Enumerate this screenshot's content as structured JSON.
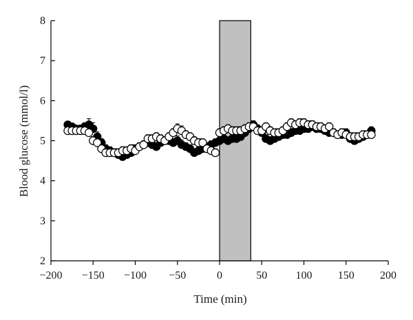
{
  "chart_data": {
    "type": "scatter",
    "title": "",
    "xlabel": "Time (min)",
    "ylabel": "Blood glucose (mmol/l)",
    "xlim": [
      -200,
      200
    ],
    "ylim": [
      2,
      8
    ],
    "xticks": [
      "−200",
      "−150",
      "−100",
      "−50",
      "0",
      "50",
      "100",
      "150",
      "200"
    ],
    "yticks": [
      "2",
      "3",
      "4",
      "5",
      "6",
      "7",
      "8"
    ],
    "xtick_values": [
      -200,
      -150,
      -100,
      -50,
      0,
      50,
      100,
      150,
      200
    ],
    "ytick_values": [
      2,
      3,
      4,
      5,
      6,
      7,
      8
    ],
    "grid": false,
    "legend": "none",
    "shaded_interval": {
      "x_start": 0,
      "x_end": 37,
      "color": "#c0c0c0"
    },
    "series": [
      {
        "marker": "filled-circle",
        "color": "#000000",
        "x": [
          -180,
          -175,
          -170,
          -165,
          -160,
          -155,
          -150,
          -145,
          -140,
          -135,
          -130,
          -125,
          -120,
          -115,
          -110,
          -105,
          -100,
          -95,
          -90,
          -85,
          -80,
          -75,
          -70,
          -65,
          -60,
          -55,
          -50,
          -45,
          -40,
          -35,
          -30,
          -25,
          -20,
          -15,
          -10,
          -5,
          0,
          5,
          10,
          15,
          20,
          25,
          30,
          35,
          40,
          45,
          50,
          55,
          60,
          65,
          70,
          75,
          80,
          85,
          90,
          95,
          100,
          105,
          110,
          115,
          120,
          125,
          130,
          135,
          140,
          145,
          150,
          155,
          160,
          165,
          170,
          175,
          180
        ],
        "y": [
          5.4,
          5.35,
          5.3,
          5.3,
          5.35,
          5.4,
          5.3,
          5.1,
          4.95,
          4.8,
          4.75,
          4.7,
          4.65,
          4.6,
          4.65,
          4.7,
          4.8,
          4.85,
          4.9,
          4.95,
          4.9,
          4.85,
          4.95,
          5.0,
          5.0,
          4.95,
          5.0,
          4.9,
          4.85,
          4.8,
          4.7,
          4.75,
          4.8,
          4.85,
          4.9,
          4.95,
          5.0,
          5.05,
          5.0,
          5.05,
          5.05,
          5.1,
          5.2,
          5.3,
          5.4,
          5.3,
          5.2,
          5.05,
          5.0,
          5.05,
          5.1,
          5.15,
          5.15,
          5.2,
          5.25,
          5.25,
          5.3,
          5.3,
          5.35,
          5.3,
          5.3,
          5.25,
          5.2,
          5.2,
          5.15,
          5.15,
          5.2,
          5.05,
          5.0,
          5.05,
          5.1,
          5.15,
          5.25
        ],
        "err": [
          0.08,
          0.08,
          0.08,
          0.08,
          0.1,
          0.15,
          0.15,
          0.12,
          0.1,
          0.1,
          0.1,
          0.1,
          0.1,
          0.1,
          0.1,
          0.1,
          0.1,
          0.1,
          0.1,
          0.1,
          0.1,
          0.1,
          0.1,
          0.1,
          0.1,
          0.1,
          0.12,
          0.12,
          0.1,
          0.1,
          0.1,
          0.1,
          0.1,
          0.1,
          0.1,
          0.1,
          0.1,
          0.1,
          0.1,
          0.1,
          0.1,
          0.1,
          0.1,
          0.1,
          0.1,
          0.1,
          0.1,
          0.1,
          0.1,
          0.1,
          0.1,
          0.1,
          0.1,
          0.1,
          0.1,
          0.1,
          0.1,
          0.1,
          0.1,
          0.1,
          0.1,
          0.1,
          0.1,
          0.1,
          0.1,
          0.1,
          0.1,
          0.1,
          0.1,
          0.1,
          0.1,
          0.1,
          0.1
        ]
      },
      {
        "marker": "open-circle",
        "color": "#ffffff",
        "x": [
          -180,
          -175,
          -170,
          -165,
          -160,
          -155,
          -150,
          -145,
          -140,
          -135,
          -130,
          -125,
          -120,
          -115,
          -110,
          -105,
          -100,
          -95,
          -90,
          -85,
          -80,
          -75,
          -70,
          -65,
          -60,
          -55,
          -50,
          -45,
          -40,
          -35,
          -30,
          -25,
          -20,
          -15,
          -10,
          -5,
          0,
          5,
          10,
          15,
          20,
          25,
          30,
          35,
          40,
          45,
          50,
          55,
          60,
          65,
          70,
          75,
          80,
          85,
          90,
          95,
          100,
          105,
          110,
          115,
          120,
          125,
          130,
          135,
          140,
          145,
          150,
          155,
          160,
          165,
          170,
          175,
          180
        ],
        "y": [
          5.25,
          5.25,
          5.25,
          5.25,
          5.25,
          5.2,
          5.0,
          4.95,
          4.8,
          4.7,
          4.7,
          4.7,
          4.7,
          4.75,
          4.75,
          4.8,
          4.75,
          4.85,
          4.9,
          5.05,
          5.05,
          5.1,
          5.05,
          5.0,
          5.1,
          5.2,
          5.3,
          5.25,
          5.15,
          5.1,
          5.0,
          4.95,
          4.95,
          4.8,
          4.75,
          4.7,
          5.2,
          5.25,
          5.3,
          5.25,
          5.25,
          5.25,
          5.3,
          5.35,
          5.35,
          5.25,
          5.25,
          5.35,
          5.25,
          5.2,
          5.2,
          5.25,
          5.35,
          5.45,
          5.4,
          5.45,
          5.45,
          5.4,
          5.4,
          5.35,
          5.35,
          5.3,
          5.35,
          5.2,
          5.15,
          5.2,
          5.15,
          5.1,
          5.1,
          5.1,
          5.15,
          5.15,
          5.15
        ],
        "err": [
          0.08,
          0.08,
          0.08,
          0.08,
          0.08,
          0.08,
          0.1,
          0.1,
          0.1,
          0.1,
          0.1,
          0.1,
          0.1,
          0.1,
          0.1,
          0.1,
          0.1,
          0.1,
          0.1,
          0.1,
          0.1,
          0.1,
          0.1,
          0.1,
          0.1,
          0.1,
          0.12,
          0.12,
          0.1,
          0.1,
          0.1,
          0.1,
          0.1,
          0.1,
          0.1,
          0.1,
          0.1,
          0.1,
          0.1,
          0.1,
          0.1,
          0.1,
          0.1,
          0.1,
          0.1,
          0.1,
          0.1,
          0.1,
          0.1,
          0.1,
          0.1,
          0.1,
          0.1,
          0.1,
          0.1,
          0.1,
          0.1,
          0.1,
          0.1,
          0.1,
          0.1,
          0.1,
          0.1,
          0.1,
          0.1,
          0.1,
          0.1,
          0.1,
          0.1,
          0.1,
          0.1,
          0.1,
          0.1
        ]
      }
    ]
  }
}
